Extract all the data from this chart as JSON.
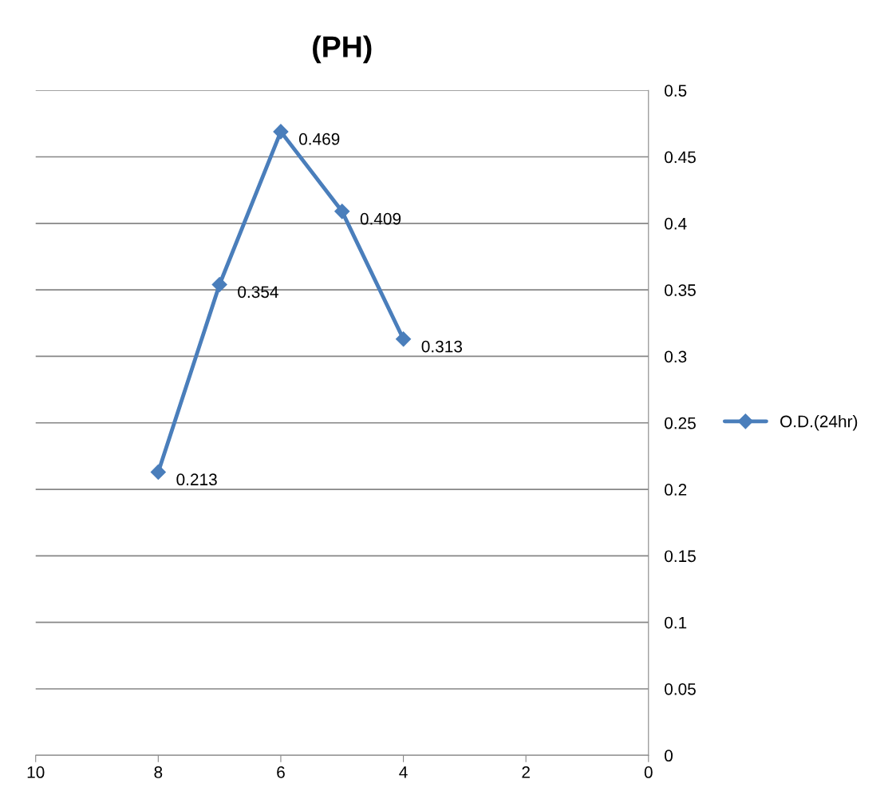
{
  "chart_data": {
    "type": "line",
    "title": "(PH)",
    "x": [
      8,
      7,
      6,
      5,
      4
    ],
    "series": [
      {
        "name": "O.D.(24hr)",
        "color": "#4a7ebb",
        "values": [
          0.213,
          0.354,
          0.469,
          0.409,
          0.313
        ]
      }
    ],
    "xlim": [
      10,
      0
    ],
    "xticks": [
      10,
      8,
      6,
      4,
      2,
      0
    ],
    "ylim": [
      0,
      0.5
    ],
    "yticks": [
      0,
      0.05,
      0.1,
      0.15,
      0.2,
      0.25,
      0.3,
      0.35,
      0.4,
      0.45,
      0.5
    ],
    "grid": "y",
    "legend": "right",
    "marker": "diamond",
    "line_style": "solid",
    "data_labels": true
  }
}
